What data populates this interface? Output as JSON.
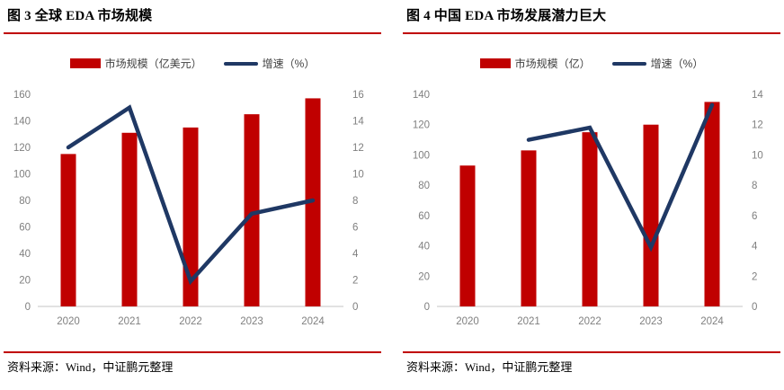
{
  "colors": {
    "bar": "#c00000",
    "line": "#1f3864",
    "rule": "#c00000",
    "axis_text": "#7f7f7f",
    "axis_line": "#d0d0d0",
    "legend_text": "#404040"
  },
  "charts": [
    {
      "title": "图 3  全球 EDA 市场规模",
      "legend": {
        "bar_label": "市场规模（亿美元）",
        "line_label": "增速（%）"
      },
      "source": "资料来源：Wind，中证鹏元整理",
      "chart_data": {
        "type": "bar",
        "subtype": "bar+line combo, dual axis",
        "categories": [
          "2020",
          "2021",
          "2022",
          "2023",
          "2024"
        ],
        "series": [
          {
            "name": "市场规模（亿美元）",
            "type": "bar",
            "axis": "left",
            "values": [
              115,
              131,
              135,
              145,
              157
            ]
          },
          {
            "name": "增速（%）",
            "type": "line",
            "axis": "right",
            "values": [
              12,
              15,
              1.9,
              7,
              8
            ]
          }
        ],
        "left_axis": {
          "min": 0,
          "max": 160,
          "step": 20
        },
        "right_axis": {
          "min": 0,
          "max": 16,
          "step": 2
        },
        "grid": false,
        "legend_position": "top"
      }
    },
    {
      "title": "图 4  中国 EDA 市场发展潜力巨大",
      "legend": {
        "bar_label": "市场规模（亿）",
        "line_label": "增速（%）"
      },
      "source": "资料来源：Wind，中证鹏元整理",
      "chart_data": {
        "type": "bar",
        "subtype": "bar+line combo, dual axis",
        "categories": [
          "2020",
          "2021",
          "2022",
          "2023",
          "2024"
        ],
        "series": [
          {
            "name": "市场规模（亿）",
            "type": "bar",
            "axis": "left",
            "values": [
              93,
              103,
              115,
              120,
              135
            ]
          },
          {
            "name": "增速（%）",
            "type": "line",
            "axis": "right",
            "values": [
              null,
              11,
              11.8,
              3.9,
              13.3
            ]
          }
        ],
        "left_axis": {
          "min": 0,
          "max": 140,
          "step": 20
        },
        "right_axis": {
          "min": 0,
          "max": 14,
          "step": 2
        },
        "grid": false,
        "legend_position": "top"
      }
    }
  ]
}
